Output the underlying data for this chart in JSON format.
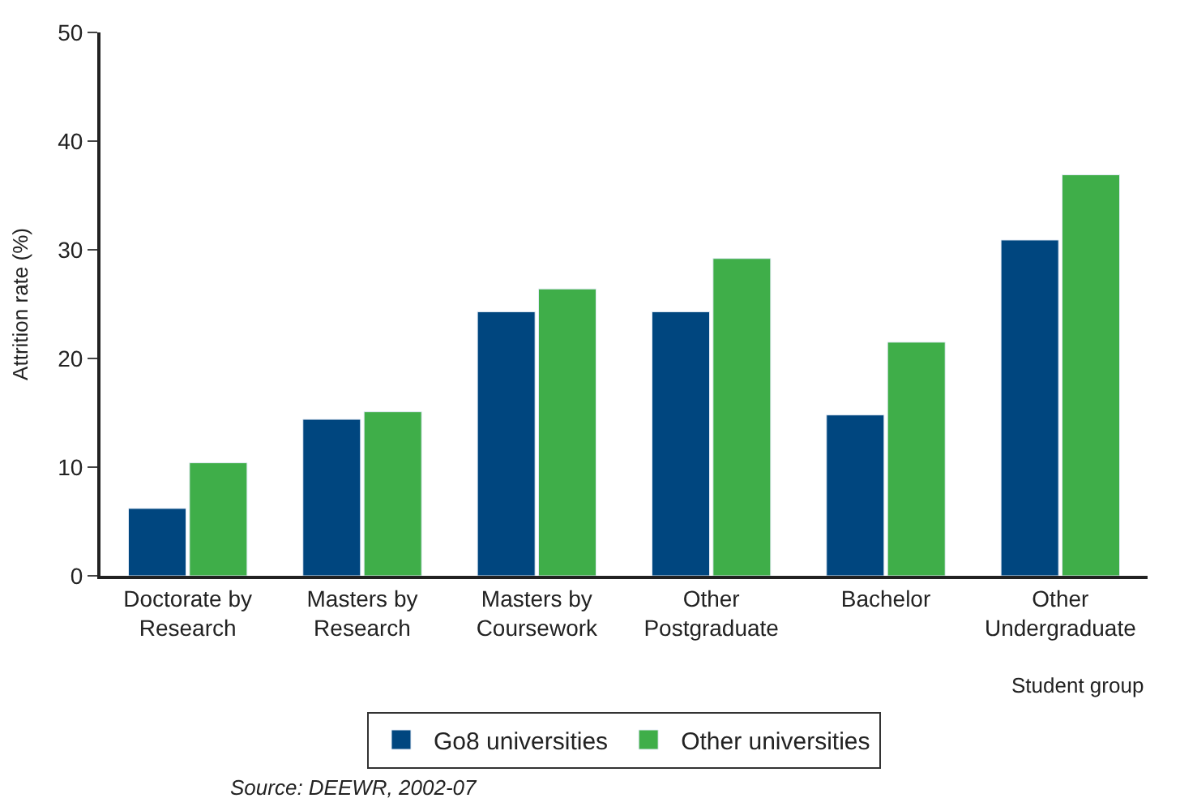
{
  "chart_data": {
    "type": "bar",
    "xlabel": "Student group",
    "ylabel": "Attrition rate (%)",
    "categories": [
      "Doctorate by\nResearch",
      "Masters by\nResearch",
      "Masters by\nCoursework",
      "Other\nPostgraduate",
      "Bachelor",
      "Other\nUndergraduate"
    ],
    "series": [
      {
        "name": "Go8 universities",
        "color": "#00467f",
        "values": [
          6.2,
          14.4,
          24.3,
          24.3,
          14.8,
          30.9
        ]
      },
      {
        "name": "Other universities",
        "color": "#3fae49",
        "values": [
          10.4,
          15.1,
          26.4,
          29.2,
          21.5,
          36.9
        ]
      }
    ],
    "ylim": [
      0,
      50
    ],
    "yticks": [
      0,
      10,
      20,
      30,
      40,
      50
    ],
    "legend": "bottom",
    "annotations": [
      "Source: DEEWR, 2002-07"
    ]
  }
}
